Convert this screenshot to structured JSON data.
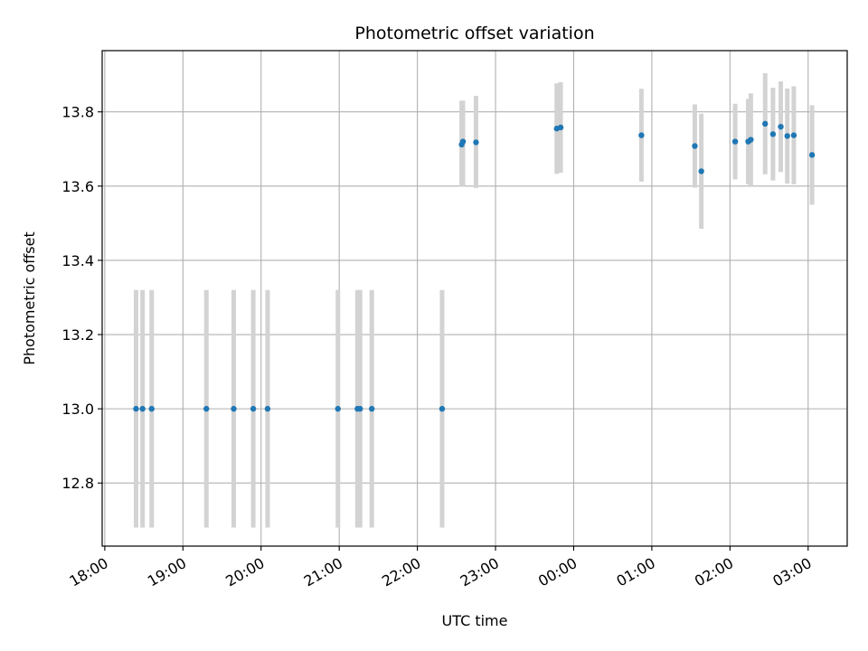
{
  "chart_data": {
    "type": "scatter",
    "title": "Photometric offset variation",
    "xlabel": "UTC time",
    "ylabel": "Photometric offset",
    "x_is_time": true,
    "xlim": [
      "17:58",
      "03:30"
    ],
    "ylim": [
      12.63,
      13.965
    ],
    "xticks": [
      "18:00",
      "19:00",
      "20:00",
      "21:00",
      "22:00",
      "23:00",
      "00:00",
      "01:00",
      "02:00",
      "03:00"
    ],
    "yticks": [
      12.8,
      13.0,
      13.2,
      13.4,
      13.6,
      13.8
    ],
    "ytick_labels": [
      "12.8",
      "13.0",
      "13.2",
      "13.4",
      "13.6",
      "13.8"
    ],
    "grid": true,
    "colors": {
      "point": "#1f77b4",
      "errorbar": "#d3d3d3",
      "grid": "#b0b0b0"
    },
    "series": [
      {
        "points": [
          {
            "x": "18:24",
            "y": 13.0,
            "lo": 12.68,
            "hi": 13.32
          },
          {
            "x": "18:29",
            "y": 13.0,
            "lo": 12.68,
            "hi": 13.32
          },
          {
            "x": "18:36",
            "y": 13.0,
            "lo": 12.68,
            "hi": 13.32
          },
          {
            "x": "19:18",
            "y": 13.0,
            "lo": 12.68,
            "hi": 13.32
          },
          {
            "x": "19:39",
            "y": 13.0,
            "lo": 12.68,
            "hi": 13.32
          },
          {
            "x": "19:54",
            "y": 13.0,
            "lo": 12.68,
            "hi": 13.32
          },
          {
            "x": "20:05",
            "y": 13.0,
            "lo": 12.68,
            "hi": 13.32
          },
          {
            "x": "20:59",
            "y": 13.0,
            "lo": 12.68,
            "hi": 13.32
          },
          {
            "x": "21:14",
            "y": 13.0,
            "lo": 12.68,
            "hi": 13.32
          },
          {
            "x": "21:16",
            "y": 13.0,
            "lo": 12.68,
            "hi": 13.32
          },
          {
            "x": "21:25",
            "y": 13.0,
            "lo": 12.68,
            "hi": 13.32
          },
          {
            "x": "22:19",
            "y": 13.0,
            "lo": 12.68,
            "hi": 13.32
          },
          {
            "x": "22:34",
            "y": 13.712,
            "lo": 13.6,
            "hi": 13.83
          },
          {
            "x": "22:35",
            "y": 13.72,
            "lo": 13.6,
            "hi": 13.83
          },
          {
            "x": "22:45",
            "y": 13.718,
            "lo": 13.595,
            "hi": 13.843
          },
          {
            "x": "23:47",
            "y": 13.755,
            "lo": 13.633,
            "hi": 13.877
          },
          {
            "x": "23:50",
            "y": 13.758,
            "lo": 13.636,
            "hi": 13.88
          },
          {
            "x": "00:52",
            "y": 13.737,
            "lo": 13.612,
            "hi": 13.862
          },
          {
            "x": "01:33",
            "y": 13.708,
            "lo": 13.596,
            "hi": 13.82
          },
          {
            "x": "01:38",
            "y": 13.64,
            "lo": 13.485,
            "hi": 13.795
          },
          {
            "x": "02:04",
            "y": 13.72,
            "lo": 13.618,
            "hi": 13.822
          },
          {
            "x": "02:14",
            "y": 13.72,
            "lo": 13.605,
            "hi": 13.835
          },
          {
            "x": "02:16",
            "y": 13.725,
            "lo": 13.6,
            "hi": 13.85
          },
          {
            "x": "02:27",
            "y": 13.768,
            "lo": 13.632,
            "hi": 13.904
          },
          {
            "x": "02:33",
            "y": 13.74,
            "lo": 13.615,
            "hi": 13.865
          },
          {
            "x": "02:39",
            "y": 13.76,
            "lo": 13.638,
            "hi": 13.882
          },
          {
            "x": "02:44",
            "y": 13.735,
            "lo": 13.607,
            "hi": 13.863
          },
          {
            "x": "02:49",
            "y": 13.737,
            "lo": 13.605,
            "hi": 13.869
          },
          {
            "x": "03:03",
            "y": 13.684,
            "lo": 13.55,
            "hi": 13.818
          }
        ]
      }
    ]
  }
}
